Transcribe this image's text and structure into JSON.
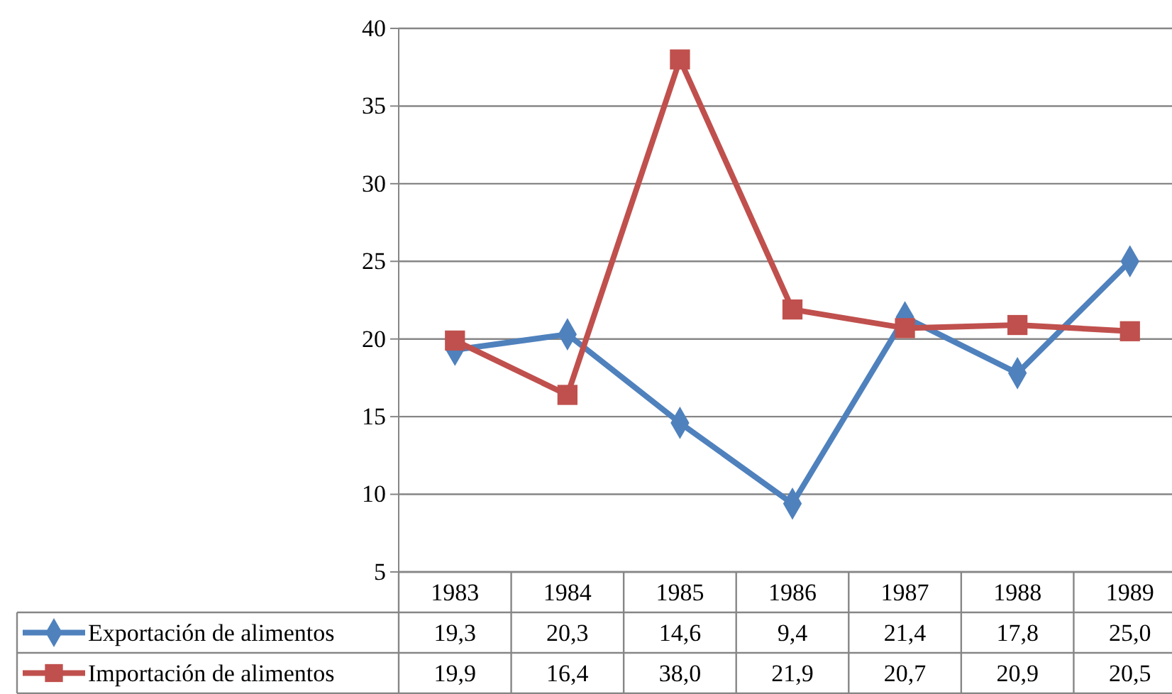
{
  "chart_data": {
    "type": "line",
    "categories": [
      "1983",
      "1984",
      "1985",
      "1986",
      "1987",
      "1988",
      "1989"
    ],
    "series": [
      {
        "name": "Exportación de alimentos",
        "color": "#4f81bd",
        "marker": "diamond",
        "values": [
          19.3,
          20.3,
          14.6,
          9.4,
          21.4,
          17.8,
          25.0
        ],
        "value_labels": [
          "19,3",
          "20,3",
          "14,6",
          "9,4",
          "21,4",
          "17,8",
          "25,0"
        ]
      },
      {
        "name": "Importación de alimentos",
        "color": "#c0504d",
        "marker": "square",
        "values": [
          19.9,
          16.4,
          38.0,
          21.9,
          20.7,
          20.9,
          20.5
        ],
        "value_labels": [
          "19,9",
          "16,4",
          "38,0",
          "21,9",
          "20,7",
          "20,9",
          "20,5"
        ]
      }
    ],
    "ylim": [
      5,
      40
    ],
    "yticks": [
      5,
      10,
      15,
      20,
      25,
      30,
      35,
      40
    ],
    "grid": "y",
    "legend": "bottom",
    "line_style": "solid"
  }
}
